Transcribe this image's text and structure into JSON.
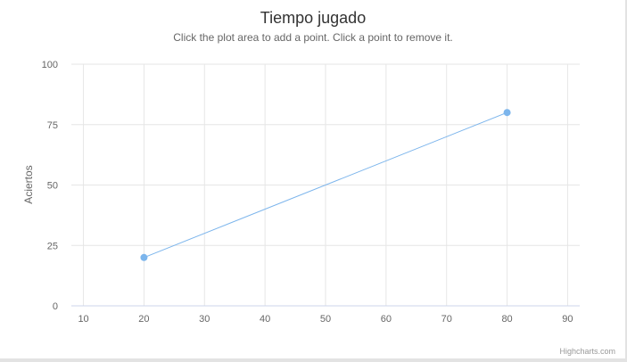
{
  "chart_data": {
    "type": "scatter",
    "title": "Tiempo jugado",
    "subtitle": "Click the plot area to add a point. Click a point to remove it.",
    "xlabel": "",
    "ylabel": "Aciertos",
    "xlim": [
      8,
      92
    ],
    "ylim": [
      0,
      100
    ],
    "x_ticks": [
      "10",
      "20",
      "30",
      "40",
      "50",
      "60",
      "70",
      "80",
      "90"
    ],
    "y_ticks": [
      "0",
      "25",
      "50",
      "75",
      "100"
    ],
    "grid": true,
    "legend": false,
    "series": [
      {
        "color": "#7cb5ec",
        "points": [
          {
            "x": 20,
            "y": 20
          },
          {
            "x": 80,
            "y": 80
          }
        ]
      }
    ]
  },
  "credits": "Highcharts.com"
}
